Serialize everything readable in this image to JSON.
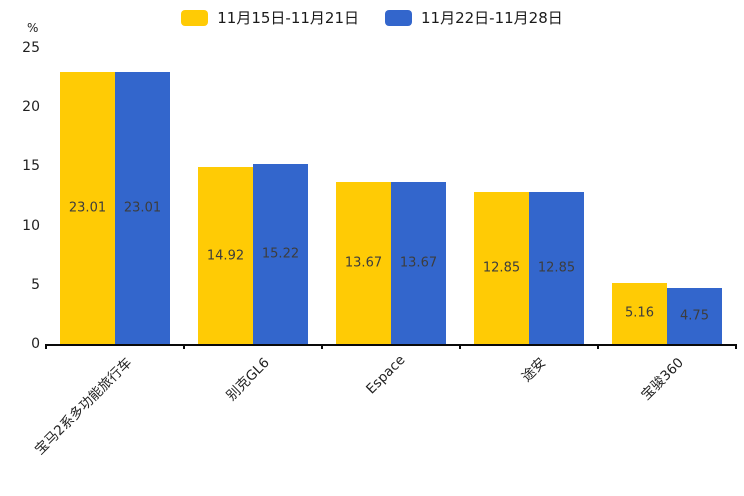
{
  "chart_data": {
    "type": "bar",
    "title": "",
    "unit_label": "%",
    "categories": [
      "宝马2系多功能旅行车",
      "别克GL6",
      "Espace",
      "途安",
      "宝骏360"
    ],
    "series": [
      {
        "name": "11月15日-11月21日",
        "color": "#FFCB05",
        "values": [
          23.01,
          14.92,
          13.67,
          12.85,
          5.16
        ]
      },
      {
        "name": "11月22日-11月28日",
        "color": "#3366CC",
        "values": [
          23.01,
          15.22,
          13.67,
          12.85,
          4.75
        ]
      }
    ],
    "value_labels": [
      "23.01",
      "14.92",
      "13.67",
      "12.85",
      "5.16",
      "23.01",
      "15.22",
      "13.67",
      "12.85",
      "4.75"
    ],
    "ylim": [
      0,
      25
    ],
    "yticks": [
      "0",
      "5",
      "10",
      "15",
      "20",
      "25"
    ],
    "grid": false,
    "legend_position": "top"
  }
}
